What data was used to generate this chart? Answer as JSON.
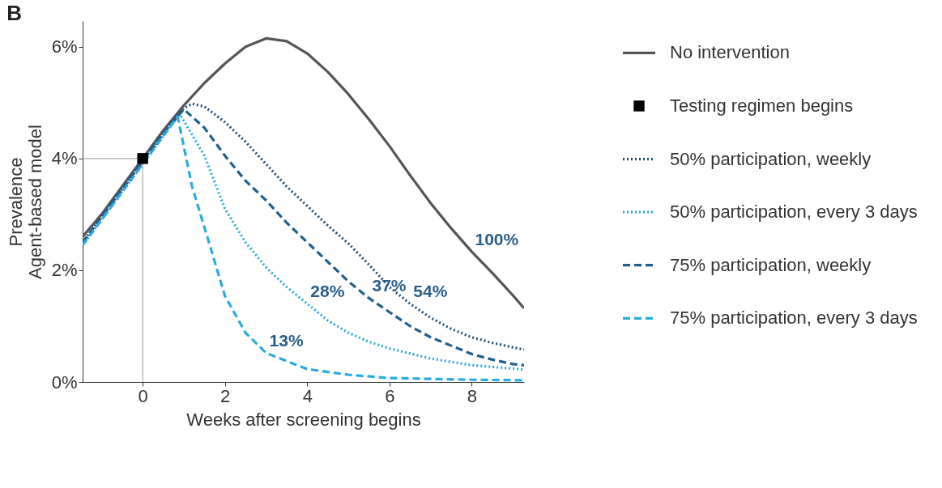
{
  "chart_data": {
    "type": "line",
    "xlabel": "Weeks after screening begins",
    "ylabel": "Prevalence\nAgent-based model",
    "xlim": [
      -1.46,
      9.27
    ],
    "xticks": [
      0,
      2,
      4,
      6,
      8
    ],
    "ylim": [
      0,
      6.46
    ],
    "yticks": [
      {
        "value": 0,
        "label": "0%"
      },
      {
        "value": 2,
        "label": "2%"
      },
      {
        "value": 4,
        "label": "4%"
      },
      {
        "value": 6,
        "label": "6%"
      }
    ],
    "grid": false,
    "legend": "right",
    "series": [
      {
        "name": "No intervention",
        "color": "#555555",
        "line_style": "solid",
        "x": [
          -1.46,
          -1,
          -0.5,
          0,
          0.5,
          1,
          1.5,
          2,
          2.5,
          3,
          3.5,
          4,
          4.5,
          5,
          5.5,
          6,
          6.5,
          7,
          7.5,
          8,
          8.5,
          9,
          9.27
        ],
        "values": [
          2.6,
          3.0,
          3.5,
          4.0,
          4.5,
          4.95,
          5.35,
          5.7,
          6.0,
          6.15,
          6.1,
          5.88,
          5.55,
          5.15,
          4.7,
          4.22,
          3.7,
          3.2,
          2.75,
          2.33,
          1.95,
          1.55,
          1.32
        ]
      },
      {
        "name": "Testing regimen begins",
        "type": "scatter",
        "marker": "square",
        "color": "#000000",
        "x": [
          0
        ],
        "values": [
          4.0
        ]
      },
      {
        "name": "50% participation, weekly",
        "color": "#1f4e79",
        "line_style": "dotted",
        "x": [
          -1.46,
          -1,
          -0.5,
          0,
          0.5,
          1,
          1.2,
          1.5,
          2,
          2.5,
          3,
          3.5,
          4,
          4.5,
          5,
          5.5,
          6,
          6.5,
          7,
          7.5,
          8,
          8.5,
          9,
          9.27
        ],
        "values": [
          2.5,
          2.95,
          3.45,
          3.95,
          4.45,
          4.9,
          4.98,
          4.93,
          4.65,
          4.3,
          3.9,
          3.5,
          3.15,
          2.8,
          2.48,
          2.1,
          1.7,
          1.4,
          1.15,
          0.95,
          0.8,
          0.7,
          0.62,
          0.58
        ]
      },
      {
        "name": "50% participation, every 3 days",
        "color": "#29abe2",
        "line_style": "dotted",
        "x": [
          -1.46,
          -1,
          -0.5,
          0,
          0.5,
          0.9,
          1.5,
          2,
          2.5,
          3,
          3.5,
          4,
          4.5,
          5,
          5.5,
          6,
          7,
          8,
          9,
          9.27
        ],
        "values": [
          2.45,
          2.9,
          3.4,
          3.9,
          4.4,
          4.8,
          4.05,
          3.1,
          2.5,
          2.05,
          1.7,
          1.4,
          1.1,
          0.88,
          0.72,
          0.6,
          0.42,
          0.3,
          0.24,
          0.22
        ]
      },
      {
        "name": "75% participation, weekly",
        "color": "#1f5f8b",
        "line_style": "dashed",
        "x": [
          -1.46,
          -1,
          -0.5,
          0,
          0.5,
          1,
          1.5,
          2,
          2.5,
          3,
          3.5,
          4,
          4.5,
          5,
          5.5,
          6,
          6.5,
          7,
          7.5,
          8,
          8.5,
          9,
          9.27
        ],
        "values": [
          2.5,
          2.95,
          3.45,
          3.95,
          4.45,
          4.88,
          4.55,
          4.05,
          3.6,
          3.25,
          2.85,
          2.5,
          2.15,
          1.8,
          1.5,
          1.25,
          1.0,
          0.8,
          0.65,
          0.5,
          0.4,
          0.32,
          0.3
        ]
      },
      {
        "name": "75% participation, every 3 days",
        "color": "#29abe2",
        "line_style": "dashed",
        "x": [
          -1.46,
          -1,
          -0.5,
          0,
          0.5,
          0.85,
          1.2,
          1.5,
          2,
          2.5,
          3,
          4,
          5,
          6,
          8,
          9.27
        ],
        "values": [
          2.45,
          2.9,
          3.4,
          3.9,
          4.4,
          4.75,
          3.5,
          2.77,
          1.54,
          0.88,
          0.52,
          0.23,
          0.13,
          0.07,
          0.04,
          0.03
        ]
      }
    ],
    "ref_lines": [
      {
        "axis": "y",
        "value": 4,
        "color": "#aaaaaa"
      },
      {
        "axis": "x",
        "value": 0,
        "color": "#aaaaaa"
      }
    ],
    "annotations": [
      "B",
      {
        "text": "100%",
        "x": 8,
        "y": 2.33
      },
      {
        "text": "54%",
        "x": 6.5,
        "y": 1.4
      },
      {
        "text": "37%",
        "x": 5.5,
        "y": 1.5
      },
      {
        "text": "28%",
        "x": 4,
        "y": 1.4
      },
      {
        "text": "13%",
        "x": 3,
        "y": 0.52
      }
    ]
  }
}
